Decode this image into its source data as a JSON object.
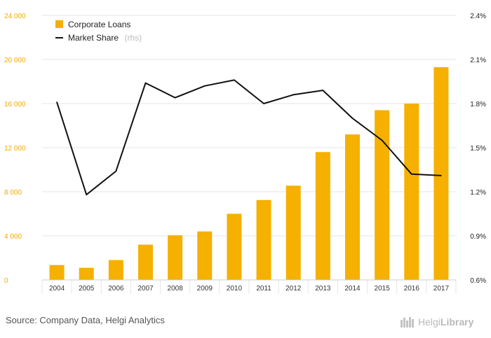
{
  "chart_data": {
    "type": "bar",
    "categories": [
      "2004",
      "2005",
      "2006",
      "2007",
      "2008",
      "2009",
      "2010",
      "2011",
      "2012",
      "2013",
      "2014",
      "2015",
      "2016",
      "2017"
    ],
    "series": [
      {
        "name": "Corporate Loans",
        "type": "bar",
        "axis": "left",
        "color": "#f5b000",
        "values": [
          1350,
          1100,
          1800,
          3200,
          4050,
          4400,
          6000,
          7250,
          8550,
          11600,
          13200,
          15400,
          16000,
          19300
        ]
      },
      {
        "name": "Market Share",
        "suffix": "(rhs)",
        "type": "line",
        "axis": "right",
        "color": "#111111",
        "values": [
          1.81,
          1.18,
          1.34,
          1.94,
          1.84,
          1.92,
          1.96,
          1.8,
          1.86,
          1.89,
          1.7,
          1.55,
          1.32,
          1.31
        ]
      }
    ],
    "y_left": {
      "min": 0,
      "max": 24000,
      "ticks": [
        0,
        4000,
        8000,
        12000,
        16000,
        20000,
        24000
      ],
      "tick_labels": [
        "0",
        "4 000",
        "8 000",
        "12 000",
        "16 000",
        "20 000",
        "24 000"
      ]
    },
    "y_right": {
      "min": 0.6,
      "max": 2.4,
      "ticks": [
        0.6,
        0.9,
        1.2,
        1.5,
        1.8,
        2.1,
        2.4
      ],
      "tick_labels": [
        "0.6%",
        "0.9%",
        "1.2%",
        "1.5%",
        "1.8%",
        "2.1%",
        "2.4%"
      ]
    },
    "grid": true,
    "legend": "top-left"
  },
  "footer": {
    "source": "Source: Company Data, Helgi Analytics",
    "brand_light": "Helgi",
    "brand_bold": "Library"
  },
  "colors": {
    "left_axis": "#f5a800",
    "grid": "#e6e6e6"
  }
}
